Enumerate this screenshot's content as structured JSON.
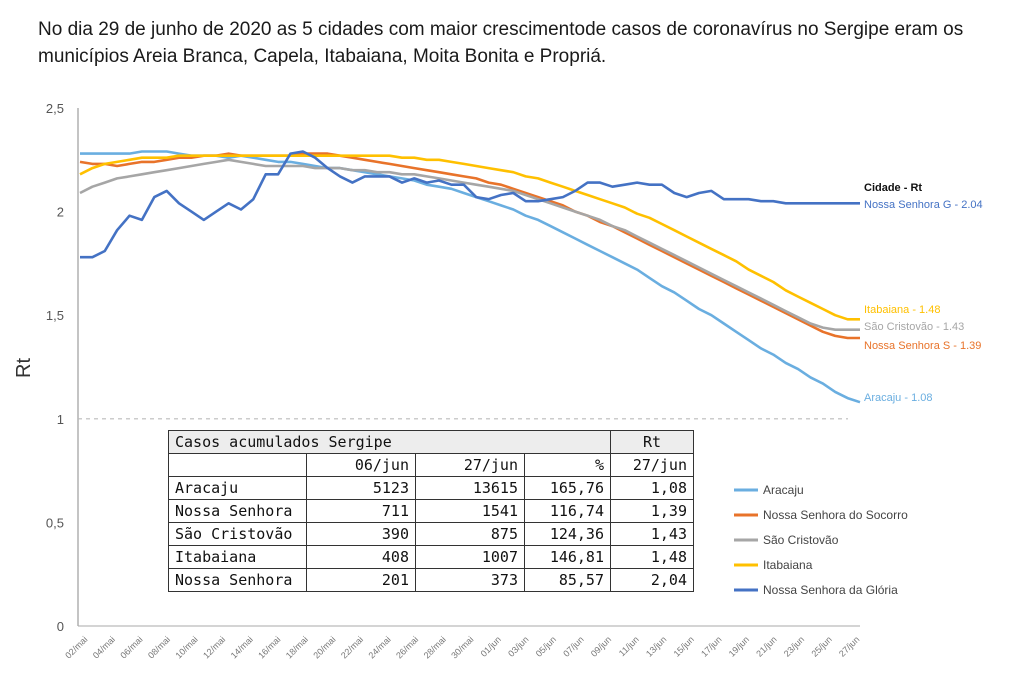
{
  "headline": "No dia 29 de junho  de 2020 as 5 cidades com maior crescimentode casos de coronavírus no Sergipe eram  os municípios Areia Branca, Capela, Itabaiana, Moita Bonita e Propriá.",
  "chart_data": {
    "type": "line",
    "title": "",
    "xlabel": "",
    "ylabel": "Rt",
    "ylim": [
      0,
      2.5
    ],
    "yticks": [
      "0",
      "0,5",
      "1",
      "1,5",
      "2",
      "2,5"
    ],
    "reference_line": 1,
    "x_tick_labels": [
      "02/mai",
      "04/mai",
      "06/mai",
      "08/mai",
      "10/mai",
      "12/mai",
      "14/mai",
      "16/mai",
      "18/mai",
      "20/mai",
      "22/mai",
      "24/mai",
      "26/mai",
      "28/mai",
      "30/mai",
      "01/jun",
      "03/jun",
      "05/jun",
      "07/jun",
      "09/jun",
      "11/jun",
      "13/jun",
      "15/jun",
      "17/jun",
      "19/jun",
      "21/jun",
      "23/jun",
      "25/jun",
      "27/jun"
    ],
    "x_start": "02/mai",
    "x_end": "27/jun",
    "legend_position": "right",
    "end_labels_title": "Cidade  - Rt",
    "series": [
      {
        "name": "Aracaju",
        "color": "#6aaee0",
        "end_label": "Aracaju - 1.08",
        "values": [
          2.28,
          2.28,
          2.28,
          2.28,
          2.28,
          2.29,
          2.29,
          2.29,
          2.28,
          2.27,
          2.27,
          2.27,
          2.26,
          2.27,
          2.26,
          2.25,
          2.24,
          2.24,
          2.23,
          2.22,
          2.21,
          2.21,
          2.2,
          2.19,
          2.18,
          2.17,
          2.16,
          2.15,
          2.13,
          2.12,
          2.11,
          2.09,
          2.07,
          2.05,
          2.03,
          2.01,
          1.98,
          1.96,
          1.93,
          1.9,
          1.87,
          1.84,
          1.81,
          1.78,
          1.75,
          1.72,
          1.68,
          1.64,
          1.61,
          1.57,
          1.53,
          1.5,
          1.46,
          1.42,
          1.38,
          1.34,
          1.31,
          1.27,
          1.24,
          1.2,
          1.17,
          1.13,
          1.1,
          1.08
        ]
      },
      {
        "name": "Nossa Senhora do Socorro",
        "color": "#e8732a",
        "end_label": "Nossa Senhora S - 1.39",
        "values": [
          2.24,
          2.23,
          2.23,
          2.22,
          2.23,
          2.24,
          2.24,
          2.25,
          2.26,
          2.26,
          2.27,
          2.27,
          2.28,
          2.27,
          2.27,
          2.27,
          2.27,
          2.27,
          2.28,
          2.28,
          2.28,
          2.27,
          2.26,
          2.25,
          2.24,
          2.23,
          2.22,
          2.21,
          2.2,
          2.19,
          2.18,
          2.17,
          2.16,
          2.14,
          2.13,
          2.11,
          2.09,
          2.07,
          2.05,
          2.03,
          2.0,
          1.98,
          1.95,
          1.93,
          1.9,
          1.87,
          1.84,
          1.81,
          1.78,
          1.75,
          1.72,
          1.69,
          1.66,
          1.63,
          1.6,
          1.57,
          1.54,
          1.51,
          1.48,
          1.45,
          1.42,
          1.4,
          1.39,
          1.39
        ]
      },
      {
        "name": "São Cristovão",
        "color": "#a6a6a6",
        "end_label": "São Cristovão - 1.43",
        "values": [
          2.09,
          2.12,
          2.14,
          2.16,
          2.17,
          2.18,
          2.19,
          2.2,
          2.21,
          2.22,
          2.23,
          2.24,
          2.25,
          2.24,
          2.23,
          2.22,
          2.22,
          2.22,
          2.22,
          2.21,
          2.21,
          2.21,
          2.2,
          2.2,
          2.19,
          2.19,
          2.18,
          2.18,
          2.17,
          2.16,
          2.15,
          2.14,
          2.13,
          2.12,
          2.11,
          2.1,
          2.08,
          2.06,
          2.04,
          2.02,
          2.0,
          1.98,
          1.96,
          1.93,
          1.91,
          1.88,
          1.85,
          1.82,
          1.79,
          1.76,
          1.73,
          1.7,
          1.67,
          1.64,
          1.61,
          1.58,
          1.55,
          1.52,
          1.49,
          1.46,
          1.44,
          1.43,
          1.43,
          1.43
        ]
      },
      {
        "name": "Itabaiana",
        "color": "#ffc000",
        "end_label": "Itabaiana - 1.48",
        "values": [
          2.18,
          2.21,
          2.23,
          2.24,
          2.25,
          2.26,
          2.26,
          2.26,
          2.27,
          2.27,
          2.27,
          2.27,
          2.27,
          2.27,
          2.27,
          2.27,
          2.27,
          2.27,
          2.27,
          2.27,
          2.27,
          2.27,
          2.27,
          2.27,
          2.27,
          2.27,
          2.26,
          2.26,
          2.25,
          2.25,
          2.24,
          2.23,
          2.22,
          2.21,
          2.2,
          2.19,
          2.17,
          2.16,
          2.14,
          2.12,
          2.1,
          2.08,
          2.06,
          2.04,
          2.02,
          1.99,
          1.97,
          1.94,
          1.91,
          1.88,
          1.85,
          1.82,
          1.79,
          1.76,
          1.72,
          1.69,
          1.66,
          1.62,
          1.59,
          1.56,
          1.53,
          1.5,
          1.48,
          1.48
        ]
      },
      {
        "name": "Nossa Senhora da Glória",
        "color": "#4472c4",
        "end_label": "Nossa Senhora G - 2.04",
        "values": [
          1.78,
          1.78,
          1.81,
          1.91,
          1.98,
          1.96,
          2.07,
          2.1,
          2.04,
          2.0,
          1.96,
          2.0,
          2.04,
          2.01,
          2.06,
          2.18,
          2.18,
          2.28,
          2.29,
          2.26,
          2.21,
          2.17,
          2.14,
          2.17,
          2.17,
          2.17,
          2.14,
          2.16,
          2.14,
          2.15,
          2.13,
          2.13,
          2.07,
          2.06,
          2.08,
          2.09,
          2.05,
          2.05,
          2.06,
          2.07,
          2.1,
          2.14,
          2.14,
          2.12,
          2.13,
          2.14,
          2.13,
          2.13,
          2.09,
          2.07,
          2.09,
          2.1,
          2.06,
          2.06,
          2.06,
          2.05,
          2.05,
          2.04,
          2.04,
          2.04,
          2.04,
          2.04,
          2.04,
          2.04
        ]
      }
    ]
  },
  "table": {
    "title": "Casos acumulados Sergipe",
    "rt_header": "Rt",
    "columns": [
      "",
      "06/jun",
      "27/jun",
      "%",
      "27/jun"
    ],
    "rows": [
      [
        "Aracaju",
        "5123",
        "13615",
        "165,76",
        "1,08"
      ],
      [
        "Nossa Senhora",
        "711",
        "1541",
        "116,74",
        "1,39"
      ],
      [
        "São Cristovão",
        "390",
        "875",
        "124,36",
        "1,43"
      ],
      [
        "Itabaiana",
        "408",
        "1007",
        "146,81",
        "1,48"
      ],
      [
        "Nossa Senhora",
        "201",
        "373",
        "85,57",
        "2,04"
      ]
    ]
  }
}
